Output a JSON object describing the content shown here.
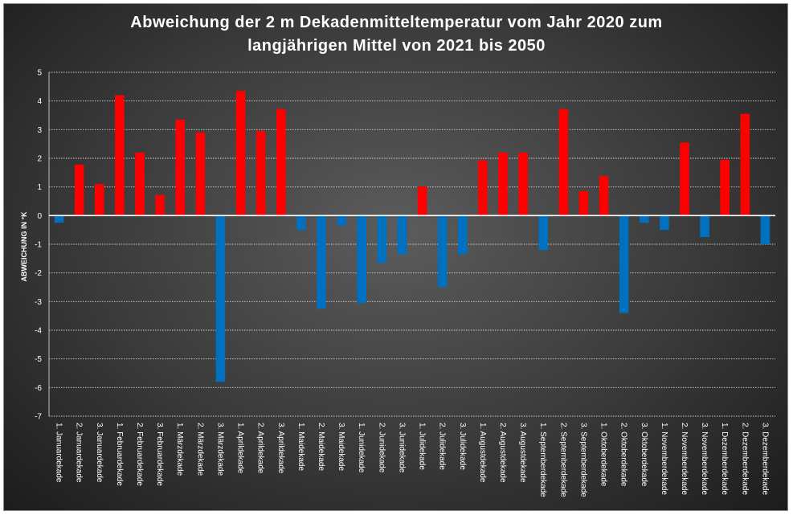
{
  "chart_data": {
    "type": "bar",
    "title": [
      "Abweichung der 2 m Dekadenmitteltemperatur  vom Jahr 2020 zum",
      "langjährigen Mittel von 2021 bis 2050"
    ],
    "xlabel": "",
    "ylabel": "ABWEICHUNG IN °K",
    "ylim": [
      -7,
      5
    ],
    "yticks": [
      5,
      4,
      3,
      2,
      1,
      0,
      -1,
      -2,
      -3,
      -4,
      -5,
      -6,
      -7
    ],
    "grid": true,
    "positive_color": "#ff0000",
    "negative_color": "#0070c0",
    "categories": [
      "1. Januardekade",
      "2. Januardekade",
      "3. Januardekade",
      "1. Februardekade",
      "2. Februardekade",
      "3. Februardekade",
      "1. Märzdekade",
      "2. Märzdekade",
      "3. Märzdekade",
      "1. Aprildekade",
      "2. Aprildekade",
      "3. Aprildekade",
      "1. Maidekade",
      "2. Maidekade",
      "3. Maidekade",
      "1. Junidekade",
      "2. Junidekade",
      "3. Junidekade",
      "1. Julidekade",
      "2. Julidekade",
      "3. Julidekade",
      "1. Augustdekade",
      "2. Augustdekade",
      "3. Augustdekade",
      "1. Septemberdekade",
      "2. Septemberdekade",
      "3. Septemberdekade",
      "1. Oktoberdekade",
      "2. Oktoberdekade",
      "3. Oktoberdekade",
      "1. Novemberdekade",
      "2. Novemberdekade",
      "3. Novemberdekade",
      "1. Dezemberdekade",
      "2. Dezemberdekade",
      "3. Dezemberdekade"
    ],
    "values": [
      -0.25,
      1.78,
      1.1,
      4.2,
      2.2,
      0.72,
      3.35,
      2.9,
      -5.8,
      4.35,
      2.95,
      3.72,
      -0.5,
      -3.25,
      -0.35,
      -3.05,
      -1.65,
      -1.35,
      1.02,
      -2.5,
      -1.35,
      1.93,
      2.2,
      2.2,
      -1.2,
      3.72,
      0.85,
      1.38,
      -3.4,
      -0.25,
      -0.5,
      2.55,
      -0.75,
      1.95,
      3.55,
      -1.0
    ]
  }
}
